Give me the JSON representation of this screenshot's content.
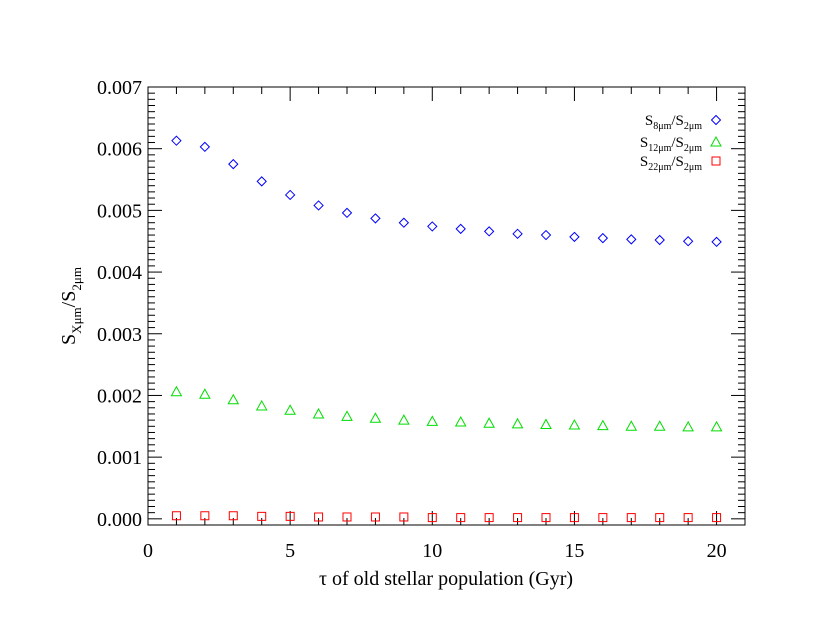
{
  "chart_data": {
    "type": "scatter",
    "x": [
      1,
      2,
      3,
      4,
      5,
      6,
      7,
      8,
      9,
      10,
      11,
      12,
      13,
      14,
      15,
      16,
      17,
      18,
      19,
      20
    ],
    "xlabel": "τ of old stellar population (Gyr)",
    "ylabel": {
      "main": "S",
      "sub1": "Xμm",
      "sep": "/S",
      "sub2": "2μm"
    },
    "xlim": [
      0,
      21
    ],
    "ylim": [
      -0.0001,
      0.007
    ],
    "xticks": [
      0,
      5,
      10,
      15,
      20
    ],
    "yticks": [
      0.0,
      0.001,
      0.002,
      0.003,
      0.004,
      0.005,
      0.006,
      0.007
    ],
    "ytick_labels": [
      "0.000",
      "0.001",
      "0.002",
      "0.003",
      "0.004",
      "0.005",
      "0.006",
      "0.007"
    ],
    "grid": false,
    "legend_position": "top-right",
    "series": [
      {
        "label": {
          "main1": "S",
          "sub1": "8μm",
          "sep": "/S",
          "sub2": "2μm"
        },
        "marker": "diamond",
        "color": "#0000ff",
        "values": [
          0.00613,
          0.00603,
          0.00575,
          0.00547,
          0.00525,
          0.00508,
          0.00496,
          0.00487,
          0.0048,
          0.00474,
          0.0047,
          0.00466,
          0.00462,
          0.0046,
          0.00457,
          0.00455,
          0.00453,
          0.00452,
          0.0045,
          0.00449
        ]
      },
      {
        "label": {
          "main1": "S",
          "sub1": "12μm",
          "sep": "/S",
          "sub2": "2μm"
        },
        "marker": "triangle",
        "color": "#00dd00",
        "values": [
          0.00206,
          0.00202,
          0.00193,
          0.00183,
          0.00176,
          0.0017,
          0.00166,
          0.00163,
          0.0016,
          0.00158,
          0.00157,
          0.00155,
          0.00154,
          0.00153,
          0.00152,
          0.00151,
          0.0015,
          0.0015,
          0.00149,
          0.00149
        ]
      },
      {
        "label": {
          "main1": "S",
          "sub1": "22μm",
          "sep": "/S",
          "sub2": "2μm"
        },
        "marker": "square",
        "color": "#ff0000",
        "values": [
          5e-05,
          5e-05,
          5e-05,
          4e-05,
          4e-05,
          3e-05,
          3e-05,
          3e-05,
          3e-05,
          2e-05,
          2e-05,
          2e-05,
          2e-05,
          2e-05,
          2e-05,
          2e-05,
          2e-05,
          2e-05,
          2e-05,
          2e-05
        ]
      }
    ]
  }
}
